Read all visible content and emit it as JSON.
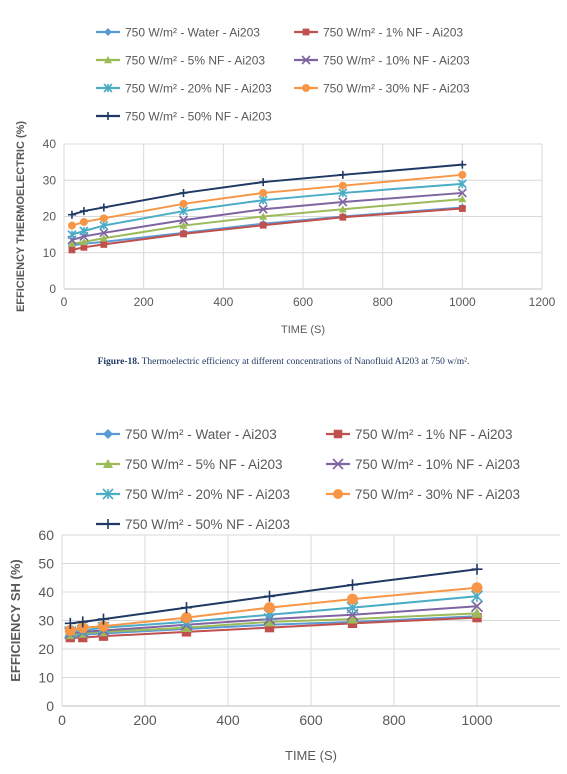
{
  "caption": {
    "label": "Figure-18.",
    "text": "Thermoelectric efficiency at different concentrations of Nanofluid AI203 at 750 w/m²."
  },
  "chart_data": [
    {
      "type": "line",
      "title": "",
      "xlabel": "TIME (S)",
      "ylabel": "EFFICIENCY THERMOELECTRIC (%)",
      "xlim": [
        0,
        1200
      ],
      "ylim": [
        0,
        40
      ],
      "xticks": [
        0,
        200,
        400,
        600,
        800,
        1000,
        1200
      ],
      "yticks": [
        0,
        10,
        20,
        30,
        40
      ],
      "grid": true,
      "legend_position": "top",
      "x": [
        20,
        50,
        100,
        300,
        500,
        700,
        1000
      ],
      "series": [
        {
          "name": "750 W/m² - Water - Ai203",
          "color": "#5b9bd5",
          "marker": "diamond",
          "values": [
            12.0,
            12.5,
            13.0,
            15.5,
            18.0,
            20.0,
            22.5
          ]
        },
        {
          "name": "750 W/m² - 1% NF - Ai203",
          "color": "#c0504d",
          "marker": "square",
          "values": [
            10.8,
            11.5,
            12.3,
            15.2,
            17.6,
            19.8,
            22.2
          ]
        },
        {
          "name": "750 W/m² - 5% NF - Ai203",
          "color": "#9bbb59",
          "marker": "triangle",
          "values": [
            12.5,
            13.0,
            14.0,
            17.5,
            20.0,
            22.0,
            24.8
          ]
        },
        {
          "name": "750 W/m² - 10% NF - Ai203",
          "color": "#8064a2",
          "marker": "x",
          "values": [
            13.5,
            14.5,
            15.5,
            19.0,
            22.0,
            24.0,
            26.5
          ]
        },
        {
          "name": "750 W/m² - 20% NF - Ai203",
          "color": "#4bacc6",
          "marker": "star",
          "values": [
            15.0,
            16.0,
            17.5,
            21.5,
            24.5,
            26.5,
            29.0
          ]
        },
        {
          "name": "750 W/m² - 30% NF - Ai203",
          "color": "#f79646",
          "marker": "circle",
          "values": [
            17.5,
            18.5,
            19.5,
            23.5,
            26.5,
            28.5,
            31.5
          ]
        },
        {
          "name": "750 W/m² - 50% NF - Ai203",
          "color": "#1f3864",
          "marker": "plus",
          "values": [
            20.5,
            21.5,
            22.5,
            26.5,
            29.5,
            31.5,
            34.3
          ]
        }
      ]
    },
    {
      "type": "line",
      "title": "",
      "xlabel": "TIME (S)",
      "ylabel": "EFFICIENCY SH (%)",
      "xlim": [
        0,
        1200
      ],
      "ylim": [
        0,
        60
      ],
      "xticks": [
        0,
        200,
        400,
        600,
        800,
        1000
      ],
      "yticks": [
        0,
        10,
        20,
        30,
        40,
        50,
        60
      ],
      "grid": true,
      "legend_position": "top",
      "x": [
        20,
        50,
        100,
        300,
        500,
        700,
        1000
      ],
      "series": [
        {
          "name": "750 W/m² - Water - Ai203",
          "color": "#5b9bd5",
          "marker": "diamond",
          "values": [
            24.5,
            25.0,
            25.5,
            27.0,
            28.5,
            29.5,
            31.5
          ]
        },
        {
          "name": "750 W/m² - 1% NF - Ai203",
          "color": "#c0504d",
          "marker": "square",
          "values": [
            24.0,
            24.0,
            24.5,
            26.0,
            27.5,
            29.0,
            31.0
          ]
        },
        {
          "name": "750 W/m² - 5% NF - Ai203",
          "color": "#9bbb59",
          "marker": "triangle",
          "values": [
            25.0,
            25.5,
            26.0,
            27.5,
            29.5,
            30.5,
            32.5
          ]
        },
        {
          "name": "750 W/m² - 10% NF - Ai203",
          "color": "#8064a2",
          "marker": "x",
          "values": [
            25.5,
            26.0,
            26.5,
            28.5,
            30.5,
            32.0,
            35.0
          ]
        },
        {
          "name": "750 W/m² - 20% NF - Ai203",
          "color": "#4bacc6",
          "marker": "star",
          "values": [
            26.0,
            26.5,
            27.5,
            29.5,
            32.0,
            34.5,
            38.5
          ]
        },
        {
          "name": "750 W/m² - 30% NF - Ai203",
          "color": "#f79646",
          "marker": "circle",
          "values": [
            26.5,
            27.5,
            28.0,
            31.0,
            34.5,
            37.5,
            41.5
          ]
        },
        {
          "name": "750 W/m² - 50% NF - Ai203",
          "color": "#1f3864",
          "marker": "plus",
          "values": [
            29.0,
            29.5,
            30.5,
            34.5,
            38.5,
            42.5,
            48.0
          ]
        }
      ]
    }
  ]
}
